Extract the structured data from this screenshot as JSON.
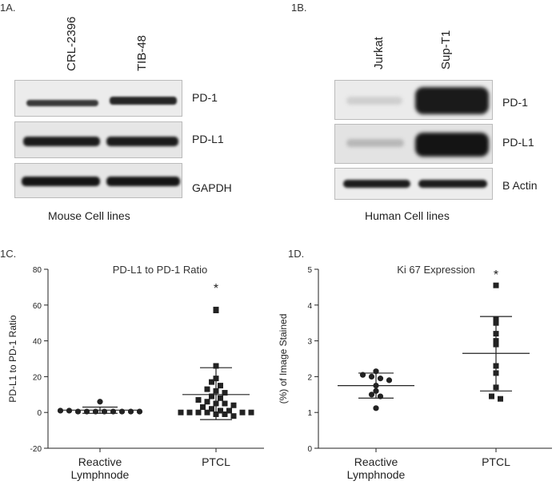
{
  "panel_1a": {
    "label": "1A.",
    "lanes": [
      "CRL-2396",
      "TIB-48"
    ],
    "blots": [
      "PD-1",
      "PD-L1",
      "GAPDH"
    ],
    "caption": "Mouse Cell lines"
  },
  "panel_1b": {
    "label": "1B.",
    "lanes": [
      "Jurkat",
      "Sup-T1"
    ],
    "blots": [
      "PD-1",
      "PD-L1",
      "B Actin"
    ],
    "caption": "Human Cell lines"
  },
  "colors": {
    "band": "#1b1b1b",
    "blot_bg": "#e8e8e8",
    "marker": "#222222"
  },
  "chart_data": [
    {
      "type": "scatter",
      "panel_label": "1C.",
      "title": "PD-L1 to PD-1 Ratio",
      "ylabel": "PD-L1 to PD-1 Ratio",
      "xlabel": "",
      "ylim": [
        -20,
        80
      ],
      "yticks": [
        "-20",
        "0",
        "20",
        "40",
        "60",
        "80"
      ],
      "categories": [
        "Reactive\nLymphnode",
        "PTCL"
      ],
      "significance": "*",
      "series": [
        {
          "category": "Reactive\nLymphnode",
          "marker": "circle",
          "values": [
            6,
            1,
            1,
            0.5,
            0.5,
            0.5,
            0.5,
            0.5,
            0.5,
            0.5,
            0.5
          ],
          "mean": 1.3,
          "sd_upper": 3,
          "sd_lower": -0.5
        },
        {
          "category": "PTCL",
          "marker": "square",
          "values": [
            57.5,
            57,
            26,
            19,
            17,
            15,
            13,
            12,
            11,
            9,
            8,
            7,
            6,
            5,
            5,
            4,
            3,
            2,
            1,
            1,
            0,
            0,
            0,
            0,
            -1,
            -1,
            -2,
            0,
            0
          ],
          "mean": 10,
          "sd_upper": 25,
          "sd_lower": -4
        }
      ]
    },
    {
      "type": "scatter",
      "panel_label": "1D.",
      "title": "Ki 67 Expression",
      "ylabel": "(%) of Image Stained",
      "xlabel": "",
      "ylim": [
        0,
        5
      ],
      "yticks": [
        "0",
        "1",
        "2",
        "3",
        "4",
        "5"
      ],
      "categories": [
        "Reactive\nLymphnode",
        "PTCL"
      ],
      "significance": "*",
      "series": [
        {
          "category": "Reactive\nLymphnode",
          "marker": "circle",
          "values": [
            2.15,
            2.05,
            2.0,
            1.95,
            1.9,
            1.75,
            1.6,
            1.5,
            1.45,
            1.12
          ],
          "mean": 1.75,
          "sd_upper": 2.1,
          "sd_lower": 1.4
        },
        {
          "category": "PTCL",
          "marker": "square",
          "values": [
            4.55,
            3.6,
            3.5,
            3.2,
            3.0,
            2.9,
            2.3,
            2.1,
            1.7,
            1.45,
            1.38
          ],
          "mean": 2.65,
          "sd_upper": 3.68,
          "sd_lower": 1.6
        }
      ]
    }
  ]
}
